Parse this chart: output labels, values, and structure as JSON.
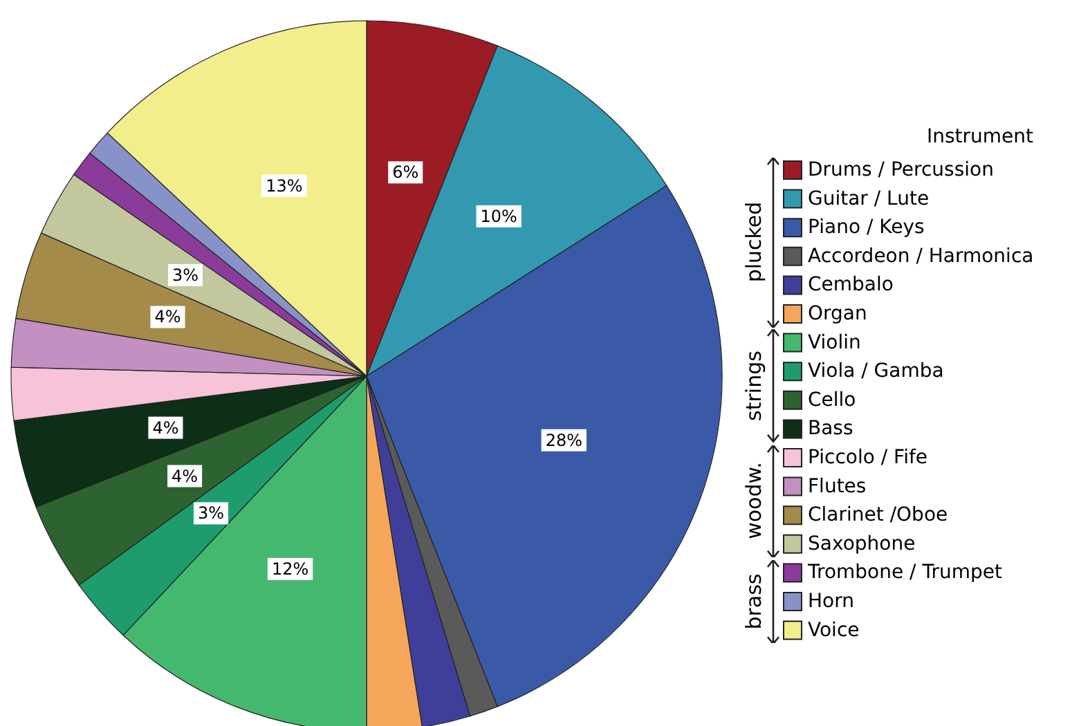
{
  "chart_data": {
    "type": "pie",
    "legend_title": "Instrument",
    "categories": [
      "Drums / Percussion",
      "Guitar / Lute",
      "Piano / Keys",
      "Accordeon / Harmonica",
      "Cembalo",
      "Organ",
      "Violin",
      "Viola / Gamba",
      "Cello",
      "Bass",
      "Piccolo / Fife",
      "Flutes",
      "Clarinet /Oboe",
      "Saxophone",
      "Trombone / Trumpet",
      "Horn",
      "Voice"
    ],
    "values": [
      6,
      10,
      28,
      1.3,
      2.2,
      2.5,
      12,
      3,
      4,
      4,
      2.4,
      2.2,
      4,
      3,
      1.2,
      1.2,
      13
    ],
    "value_labels": [
      "6%",
      "10%",
      "28%",
      null,
      null,
      null,
      "12%",
      "3%",
      "4%",
      "4%",
      null,
      null,
      "4%",
      "3%",
      null,
      null,
      "13%"
    ],
    "colors": [
      "#9b1c25",
      "#3399b0",
      "#3a5aa8",
      "#5a5a5a",
      "#3f3f9a",
      "#f5a65a",
      "#45b86f",
      "#1f9c6e",
      "#2d6330",
      "#0d2e17",
      "#f6c3d9",
      "#c48fc1",
      "#a48b4a",
      "#c3c79d",
      "#8b3c9a",
      "#8792c9",
      "#f3ee8c"
    ],
    "annotations": [
      "plucked",
      "strings",
      "woodw.",
      "brass"
    ],
    "legend": "right"
  }
}
